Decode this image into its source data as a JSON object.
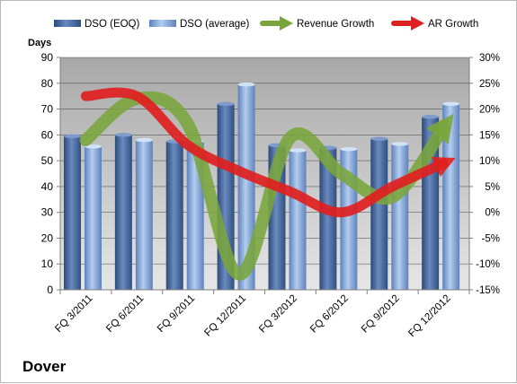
{
  "company": "Dover",
  "chart_data": {
    "type": "bar",
    "categories": [
      "FQ 3/2011",
      "FQ 6/2011",
      "FQ 9/2011",
      "FQ 12/2011",
      "FQ 3/2012",
      "FQ 6/2012",
      "FQ 9/2012",
      "FQ 12/2012"
    ],
    "y_left_label": "Days",
    "y_left_range": [
      0,
      90
    ],
    "y_left_ticks": [
      "0",
      "10",
      "20",
      "30",
      "40",
      "50",
      "60",
      "70",
      "80",
      "90"
    ],
    "y_right_range": [
      -15,
      30
    ],
    "y_right_ticks": [
      "-15%",
      "-10%",
      "-5%",
      "0%",
      "5%",
      "10%",
      "15%",
      "20%",
      "25%",
      "30%"
    ],
    "grid": true,
    "legend_position": "top",
    "series": [
      {
        "name": "DSO (EOQ)",
        "kind": "bar",
        "axis": "left",
        "color": "#4f6fa0",
        "values": [
          59.5,
          60,
          57.5,
          72,
          56,
          55,
          58.5,
          67
        ]
      },
      {
        "name": "DSO (average)",
        "kind": "bar",
        "axis": "left",
        "color": "#8fb0de",
        "values": [
          55.5,
          58,
          57.5,
          79.5,
          54,
          54.5,
          56.5,
          72
        ]
      },
      {
        "name": "Revenue Growth",
        "kind": "line",
        "axis": "right",
        "color": "#7aa53c",
        "values": [
          14,
          22,
          17,
          -12,
          14.5,
          7.5,
          3,
          16.5
        ]
      },
      {
        "name": "AR Growth",
        "kind": "line",
        "axis": "right",
        "color": "#e02020",
        "values": [
          22.5,
          22.5,
          13,
          8,
          4,
          0,
          5,
          9.5
        ]
      }
    ]
  }
}
